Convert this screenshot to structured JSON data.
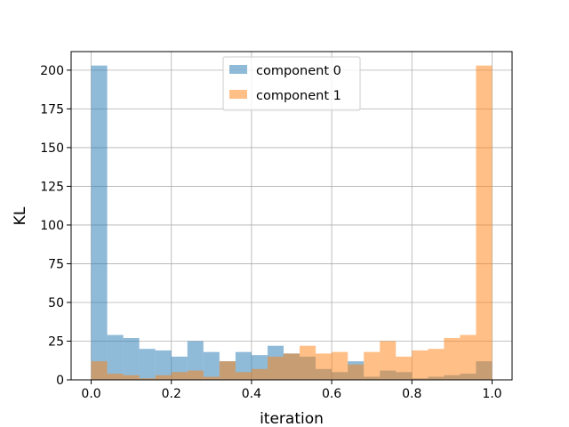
{
  "chart_data": {
    "type": "histogram",
    "title": "",
    "xlabel": "iteration",
    "ylabel": "KL",
    "xlim": [
      -0.05,
      1.05
    ],
    "ylim": [
      0,
      212
    ],
    "xticks": [
      0.0,
      0.2,
      0.4,
      0.6,
      0.8,
      1.0
    ],
    "xtick_labels": [
      "0.0",
      "0.2",
      "0.4",
      "0.6",
      "0.8",
      "1.0"
    ],
    "yticks": [
      0,
      25,
      50,
      75,
      100,
      125,
      150,
      175,
      200
    ],
    "ytick_labels": [
      "0",
      "25",
      "50",
      "75",
      "100",
      "125",
      "150",
      "175",
      "200"
    ],
    "grid": true,
    "legend_position": "upper center",
    "bin_edges": [
      0.0,
      0.04,
      0.08,
      0.12,
      0.16,
      0.2,
      0.24,
      0.28,
      0.32,
      0.36,
      0.4,
      0.44,
      0.48,
      0.52,
      0.56,
      0.6,
      0.64,
      0.68,
      0.72,
      0.76,
      0.8,
      0.84,
      0.88,
      0.92,
      0.96,
      1.0
    ],
    "series": [
      {
        "name": "component 0",
        "color": "#1f77b4",
        "alpha": 0.5,
        "values": [
          203,
          29,
          27,
          20,
          19,
          15,
          25,
          18,
          12,
          18,
          16,
          22,
          17,
          15,
          7,
          5,
          12,
          2,
          6,
          5,
          1,
          2,
          3,
          4,
          12
        ]
      },
      {
        "name": "component 1",
        "color": "#ff7f0e",
        "alpha": 0.5,
        "values": [
          12,
          4,
          3,
          1,
          3,
          5,
          6,
          2,
          12,
          5,
          7,
          15,
          17,
          22,
          17,
          18,
          10,
          18,
          25,
          15,
          19,
          20,
          27,
          29,
          203
        ]
      }
    ]
  }
}
